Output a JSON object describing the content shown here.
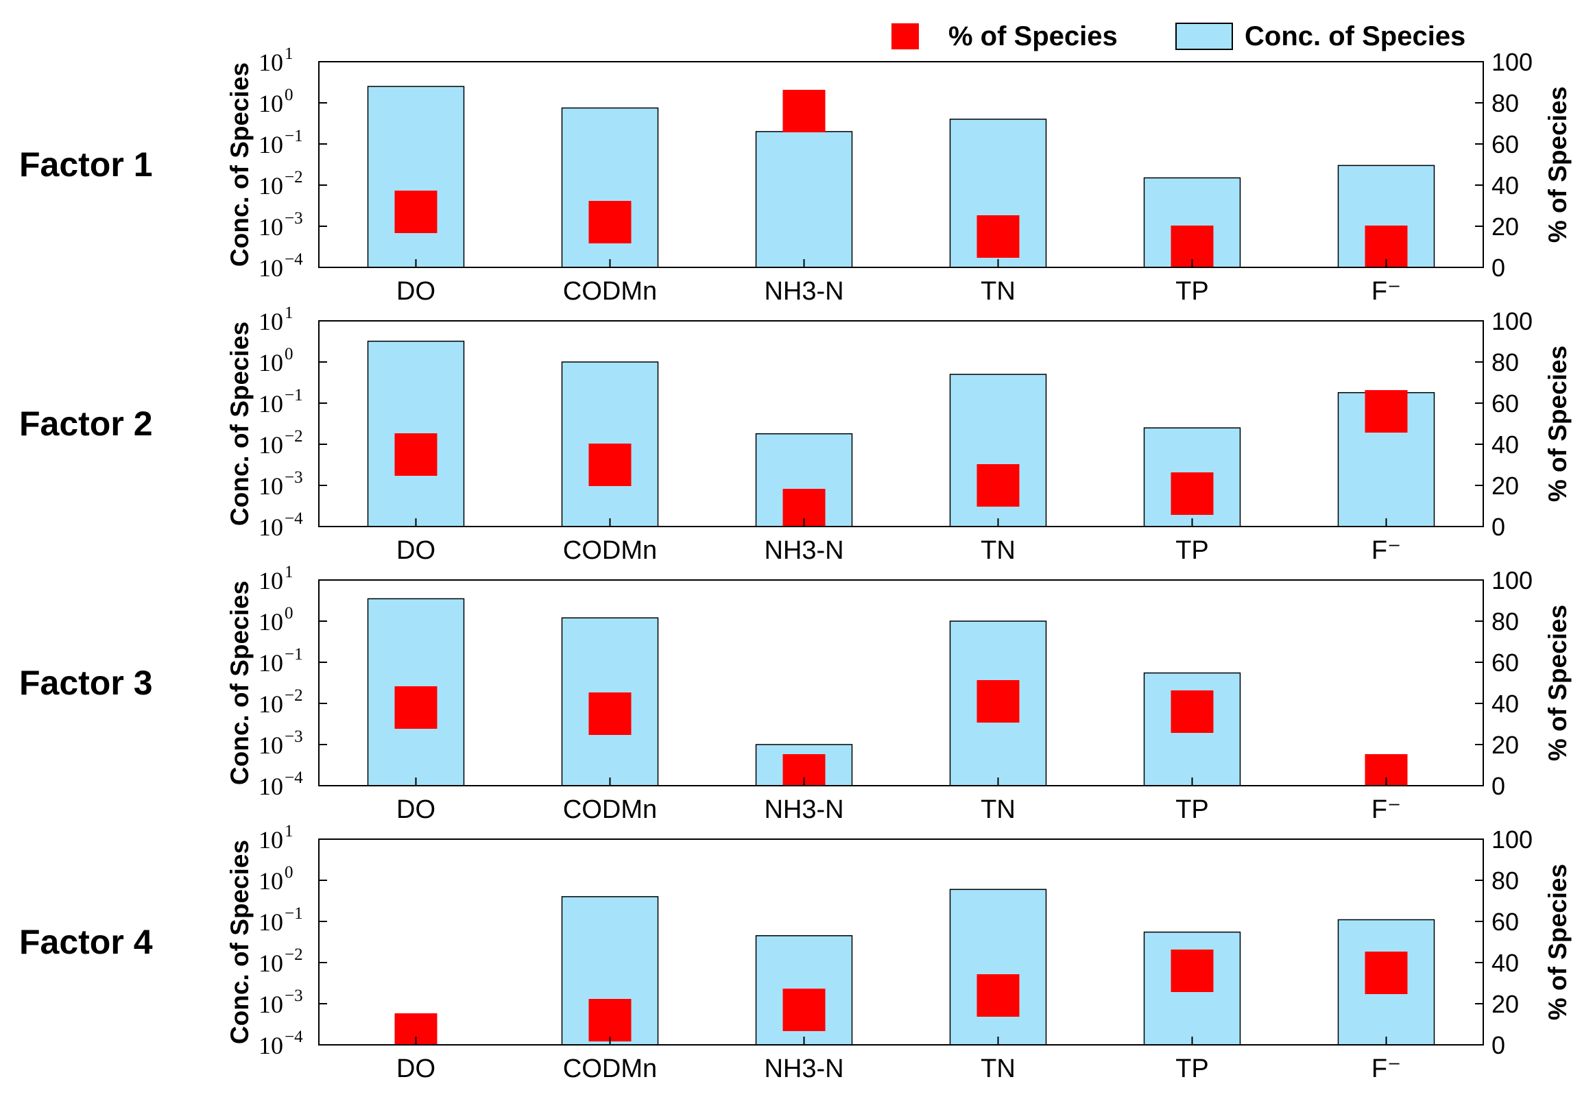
{
  "legend": {
    "pct_label": "% of Species",
    "conc_label": "Conc. of Species",
    "pct_color": "#ff0000",
    "conc_color": "#a6e3fb",
    "placement": "top-right"
  },
  "chart_data": {
    "type": "bar",
    "categories": [
      "DO",
      "CODMn",
      "NH3-N",
      "TN",
      "TP",
      "F⁻"
    ],
    "ylabel": "Conc. of Species",
    "y2label": "% of Species",
    "yscale": "log",
    "ylim": [
      0.0001,
      10
    ],
    "y_ticks": [
      {
        "base": "10",
        "exp": "1"
      },
      {
        "base": "10",
        "exp": "0"
      },
      {
        "base": "10",
        "exp": "−1"
      },
      {
        "base": "10",
        "exp": "−2"
      },
      {
        "base": "10",
        "exp": "−3"
      },
      {
        "base": "10",
        "exp": "−4"
      }
    ],
    "y2lim": [
      0,
      100
    ],
    "y2_ticks": [
      "0",
      "20",
      "40",
      "60",
      "80",
      "100"
    ],
    "panels": [
      {
        "label": "Factor 1",
        "conc": [
          2.5,
          0.75,
          0.2,
          0.4,
          0.015,
          0.03
        ],
        "pct": [
          27,
          22,
          76,
          15,
          10,
          10
        ]
      },
      {
        "label": "Factor 2",
        "conc": [
          3.2,
          1.0,
          0.018,
          0.5,
          0.025,
          0.18
        ],
        "pct": [
          35,
          30,
          8,
          20,
          16,
          56
        ]
      },
      {
        "label": "Factor 3",
        "conc": [
          3.5,
          1.2,
          0.001,
          1.0,
          0.055,
          0.0001
        ],
        "pct": [
          38,
          35,
          5,
          41,
          36,
          5
        ]
      },
      {
        "label": "Factor 4",
        "conc": [
          0.0001,
          0.4,
          0.045,
          0.6,
          0.055,
          0.11
        ],
        "pct": [
          5,
          12,
          17,
          24,
          36,
          35
        ]
      }
    ]
  }
}
